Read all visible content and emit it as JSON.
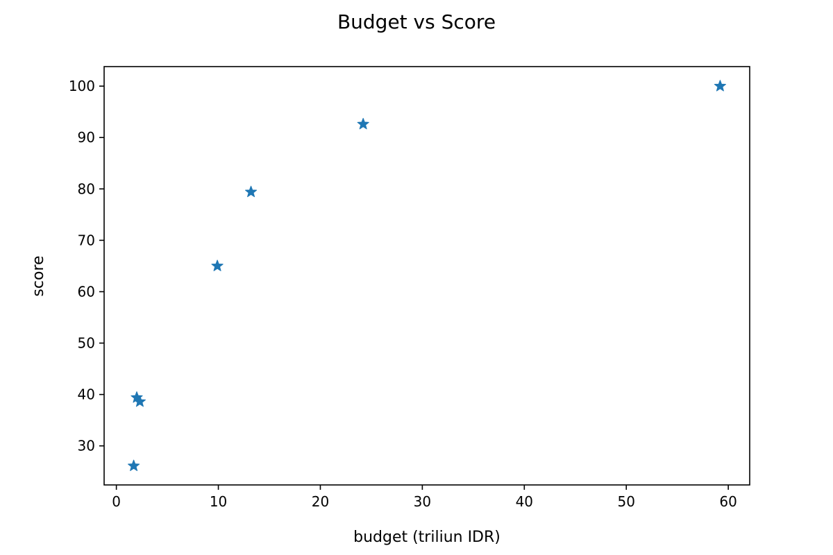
{
  "chart_data": {
    "type": "scatter",
    "title": "Budget vs Score",
    "xlabel": "budget (triliun IDR)",
    "ylabel": "score",
    "xlim": [
      -1.2,
      62.1
    ],
    "ylim": [
      22.4,
      103.8
    ],
    "xticks": [
      0,
      10,
      20,
      30,
      40,
      50,
      60
    ],
    "yticks": [
      30,
      40,
      50,
      60,
      70,
      80,
      90,
      100
    ],
    "marker": "star",
    "grid": false,
    "color": "#1f77b4",
    "series": [
      {
        "points": [
          {
            "x": 1.7,
            "y": 26.1
          },
          {
            "x": 2.0,
            "y": 39.4
          },
          {
            "x": 2.3,
            "y": 38.6
          },
          {
            "x": 9.9,
            "y": 65.0
          },
          {
            "x": 13.2,
            "y": 79.4
          },
          {
            "x": 24.2,
            "y": 92.6
          },
          {
            "x": 59.2,
            "y": 100.0
          }
        ]
      }
    ]
  }
}
